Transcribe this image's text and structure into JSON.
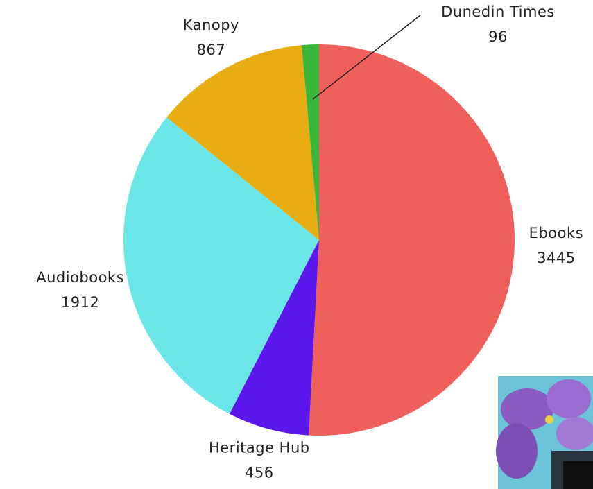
{
  "chart_data": {
    "type": "pie",
    "categories": [
      "Ebooks",
      "Heritage Hub",
      "Audiobooks",
      "Kanopy",
      "Dunedin Times"
    ],
    "values": [
      3445,
      456,
      1912,
      867,
      96
    ],
    "colors": [
      "#ef5f5c",
      "#5c17ec",
      "#6ae6e8",
      "#e8ad12",
      "#3bb53a"
    ]
  }
}
